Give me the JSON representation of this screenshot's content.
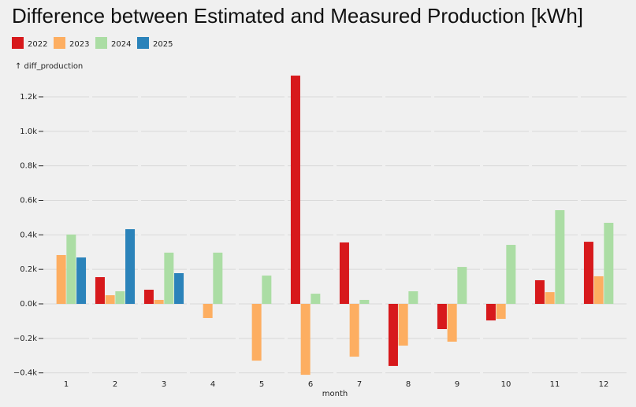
{
  "chart_data": {
    "type": "bar",
    "title": "Difference between Estimated and Measured Production [kWh]",
    "y_label": "↑ diff_production",
    "x_label": "month",
    "categories": [
      "1",
      "2",
      "3",
      "4",
      "5",
      "6",
      "7",
      "8",
      "9",
      "10",
      "11",
      "12"
    ],
    "series": [
      {
        "name": "2022",
        "color": "#d7191c",
        "values": [
          null,
          155,
          82,
          null,
          null,
          1323,
          356,
          -360,
          -146,
          -96,
          137,
          360
        ]
      },
      {
        "name": "2023",
        "color": "#fdae61",
        "values": [
          283,
          50,
          23,
          -82,
          -329,
          -411,
          -306,
          -242,
          -219,
          -87,
          68,
          160
        ]
      },
      {
        "name": "2024",
        "color": "#abdda4",
        "values": [
          402,
          73,
          297,
          297,
          164,
          59,
          23,
          73,
          214,
          342,
          543,
          470
        ]
      },
      {
        "name": "2025",
        "color": "#2b83ba",
        "values": [
          269,
          433,
          178,
          null,
          null,
          null,
          null,
          null,
          null,
          null,
          null,
          null
        ]
      }
    ],
    "ylim": [
      -420,
      1340
    ],
    "yticks": [
      {
        "value": -400,
        "label": "−0.4k"
      },
      {
        "value": -200,
        "label": "−0.2k"
      },
      {
        "value": 0,
        "label": "0.0k"
      },
      {
        "value": 200,
        "label": "0.2k"
      },
      {
        "value": 400,
        "label": "0.4k"
      },
      {
        "value": 600,
        "label": "0.6k"
      },
      {
        "value": 800,
        "label": "0.8k"
      },
      {
        "value": 1000,
        "label": "1.0k"
      },
      {
        "value": 1200,
        "label": "1.2k"
      }
    ],
    "grid": true
  }
}
